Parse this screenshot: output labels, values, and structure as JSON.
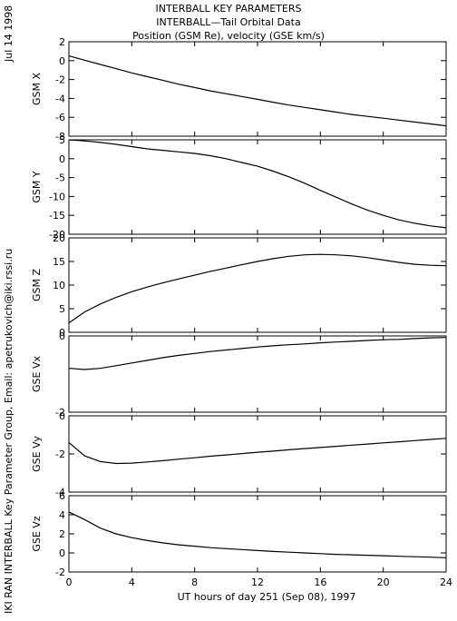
{
  "header": {
    "title": [
      "INTERBALL KEY PARAMETERS",
      "INTERBALL—Tail Orbital Data",
      "Position (GSM Re), velocity (GSE km/s)"
    ]
  },
  "side_labels": {
    "date": "Jul 14 1998",
    "credit": "IKI RAN INTERBALL Key Parameter Group, Email: apetrukovich@iki.rssi.ru"
  },
  "chart_data": {
    "type": "line",
    "x": [
      0,
      1,
      2,
      3,
      4,
      5,
      6,
      7,
      8,
      9,
      10,
      11,
      12,
      13,
      14,
      15,
      16,
      17,
      18,
      19,
      20,
      21,
      22,
      23,
      24
    ],
    "xlabel": "UT hours of day 251 (Sep 08), 1997",
    "xlim": [
      0,
      24
    ],
    "xticks": [
      0,
      4,
      8,
      12,
      16,
      20,
      24
    ],
    "xtick_labels": [
      "0",
      "4",
      "8",
      "12",
      "16",
      "20",
      "24"
    ],
    "panels": [
      {
        "ylabel": "GSM X",
        "ylim": [
          -8,
          2
        ],
        "yticks": [
          -8,
          -6,
          -4,
          -2,
          0,
          2
        ],
        "ytick_labels": [
          "-8",
          "-6",
          "-4",
          "-2",
          "0",
          "2"
        ],
        "values": [
          0.5,
          0.05,
          -0.4,
          -0.85,
          -1.3,
          -1.7,
          -2.1,
          -2.5,
          -2.85,
          -3.2,
          -3.5,
          -3.8,
          -4.1,
          -4.4,
          -4.7,
          -4.95,
          -5.2,
          -5.45,
          -5.7,
          -5.9,
          -6.1,
          -6.3,
          -6.5,
          -6.7,
          -6.9
        ]
      },
      {
        "ylabel": "GSM Y",
        "ylim": [
          -20,
          5
        ],
        "yticks": [
          -20,
          -15,
          -10,
          -5,
          0,
          5
        ],
        "ytick_labels": [
          "-20",
          "-15",
          "-10",
          "-5",
          "0",
          "5"
        ],
        "values": [
          5.0,
          4.7,
          4.3,
          3.8,
          3.2,
          2.6,
          2.2,
          1.8,
          1.4,
          0.8,
          0.0,
          -1.0,
          -2.0,
          -3.3,
          -4.8,
          -6.5,
          -8.4,
          -10.2,
          -12.0,
          -13.6,
          -15.0,
          -16.2,
          -17.1,
          -17.8,
          -18.3
        ]
      },
      {
        "ylabel": "GSM Z",
        "ylim": [
          0,
          20
        ],
        "yticks": [
          0,
          5,
          10,
          15,
          20
        ],
        "ytick_labels": [
          "0",
          "5",
          "10",
          "15",
          "20"
        ],
        "values": [
          2.0,
          4.3,
          6.0,
          7.4,
          8.6,
          9.6,
          10.5,
          11.3,
          12.1,
          12.9,
          13.6,
          14.3,
          15.0,
          15.6,
          16.1,
          16.4,
          16.5,
          16.4,
          16.2,
          15.8,
          15.3,
          14.8,
          14.4,
          14.2,
          14.1
        ]
      },
      {
        "ylabel": "GSE Vx",
        "ylim": [
          -2,
          0
        ],
        "yticks": [
          -2,
          0
        ],
        "ytick_labels": [
          "-2",
          "0"
        ],
        "values": [
          -0.85,
          -0.88,
          -0.85,
          -0.78,
          -0.71,
          -0.64,
          -0.57,
          -0.51,
          -0.46,
          -0.41,
          -0.37,
          -0.33,
          -0.29,
          -0.26,
          -0.23,
          -0.21,
          -0.18,
          -0.16,
          -0.14,
          -0.12,
          -0.1,
          -0.09,
          -0.07,
          -0.05,
          -0.04
        ]
      },
      {
        "ylabel": "GSE Vy",
        "ylim": [
          -4,
          0
        ],
        "yticks": [
          -4,
          -2,
          0
        ],
        "ytick_labels": [
          "-4",
          "-2",
          "0"
        ],
        "values": [
          -1.4,
          -2.1,
          -2.4,
          -2.5,
          -2.48,
          -2.42,
          -2.35,
          -2.27,
          -2.2,
          -2.12,
          -2.05,
          -1.98,
          -1.91,
          -1.85,
          -1.78,
          -1.72,
          -1.66,
          -1.6,
          -1.54,
          -1.48,
          -1.42,
          -1.36,
          -1.3,
          -1.24,
          -1.18
        ]
      },
      {
        "ylabel": "GSE Vz",
        "ylim": [
          -2,
          6
        ],
        "yticks": [
          -2,
          0,
          2,
          4,
          6
        ],
        "ytick_labels": [
          "-2",
          "0",
          "2",
          "4",
          "6"
        ],
        "values": [
          4.3,
          3.5,
          2.6,
          2.0,
          1.6,
          1.3,
          1.05,
          0.85,
          0.7,
          0.55,
          0.45,
          0.35,
          0.25,
          0.15,
          0.08,
          0.0,
          -0.08,
          -0.15,
          -0.2,
          -0.25,
          -0.3,
          -0.35,
          -0.4,
          -0.45,
          -0.5
        ]
      }
    ]
  }
}
